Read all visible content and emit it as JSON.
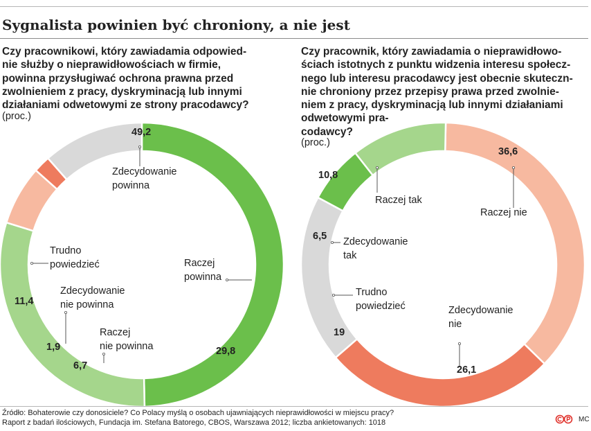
{
  "title": "Sygnalista powinien być chroniony, a nie jest",
  "footer": "Źródło: Bohaterowie czy donosiciele? Co Polacy myślą o osobach ujawniających nieprawidłowości w miejscu pracy?\nRaport z badań ilościowych, Fundacja im. Stefana Batorego, CBOS, Warszawa 2012; liczba ankietowanych: 1018",
  "author": "MC",
  "chart_data": [
    {
      "type": "pie",
      "variant": "donut",
      "question": "Czy pracownikowi, który zawiadamia odpowied-\nnie służby o nieprawidłowościach w firmie,\npowinna przysługiwać ochrona prawna przed\nzwolnieniem z pracy, dyskryminacją lub innymi\ndziałaniami odwetowymi ze strony pracodawcy?",
      "unit": "(proc.)",
      "slices": [
        {
          "label": "Zdecydowanie\npowinna",
          "value": 49.2,
          "display": "49,2",
          "color": "#6bbf4b"
        },
        {
          "label": "Raczej\npowinna",
          "value": 29.8,
          "display": "29,8",
          "color": "#a5d68c"
        },
        {
          "label": "Raczej\nnie powinna",
          "value": 6.7,
          "display": "6,7",
          "color": "#f7b9a0"
        },
        {
          "label": "Zdecydowanie\nnie powinna",
          "value": 1.9,
          "display": "1,9",
          "color": "#ee7b5e"
        },
        {
          "label": "Trudno\npowiedzieć",
          "value": 11.4,
          "display": "11,4",
          "color": "#d9d9d9"
        }
      ]
    },
    {
      "type": "pie",
      "variant": "donut",
      "question": "Czy pracownik, który zawiadamia o nieprawidłowo-\nściach istotnych z punktu widzenia interesu społecz-\nnego lub interesu pracodawcy jest obecnie skuteczn-\nnie chroniony przez przepisy prawa przed zwolnie-\nniem z pracy, dyskryminacją lub innymi działaniami\nodwetowymi pra-\ncodawcy?",
      "unit": "(proc.)",
      "slices": [
        {
          "label": "Raczej nie",
          "value": 36.6,
          "display": "36,6",
          "color": "#f7b9a0"
        },
        {
          "label": "Zdecydowanie\nnie",
          "value": 26.1,
          "display": "26,1",
          "color": "#ee7b5e"
        },
        {
          "label": "Trudno\npowiedzieć",
          "value": 19,
          "display": "19",
          "color": "#d9d9d9"
        },
        {
          "label": "Zdecydowanie\ntak",
          "value": 6.5,
          "display": "6,5",
          "color": "#6bbf4b"
        },
        {
          "label": "Raczej tak",
          "value": 10.8,
          "display": "10,8",
          "color": "#a5d68c"
        }
      ]
    }
  ]
}
